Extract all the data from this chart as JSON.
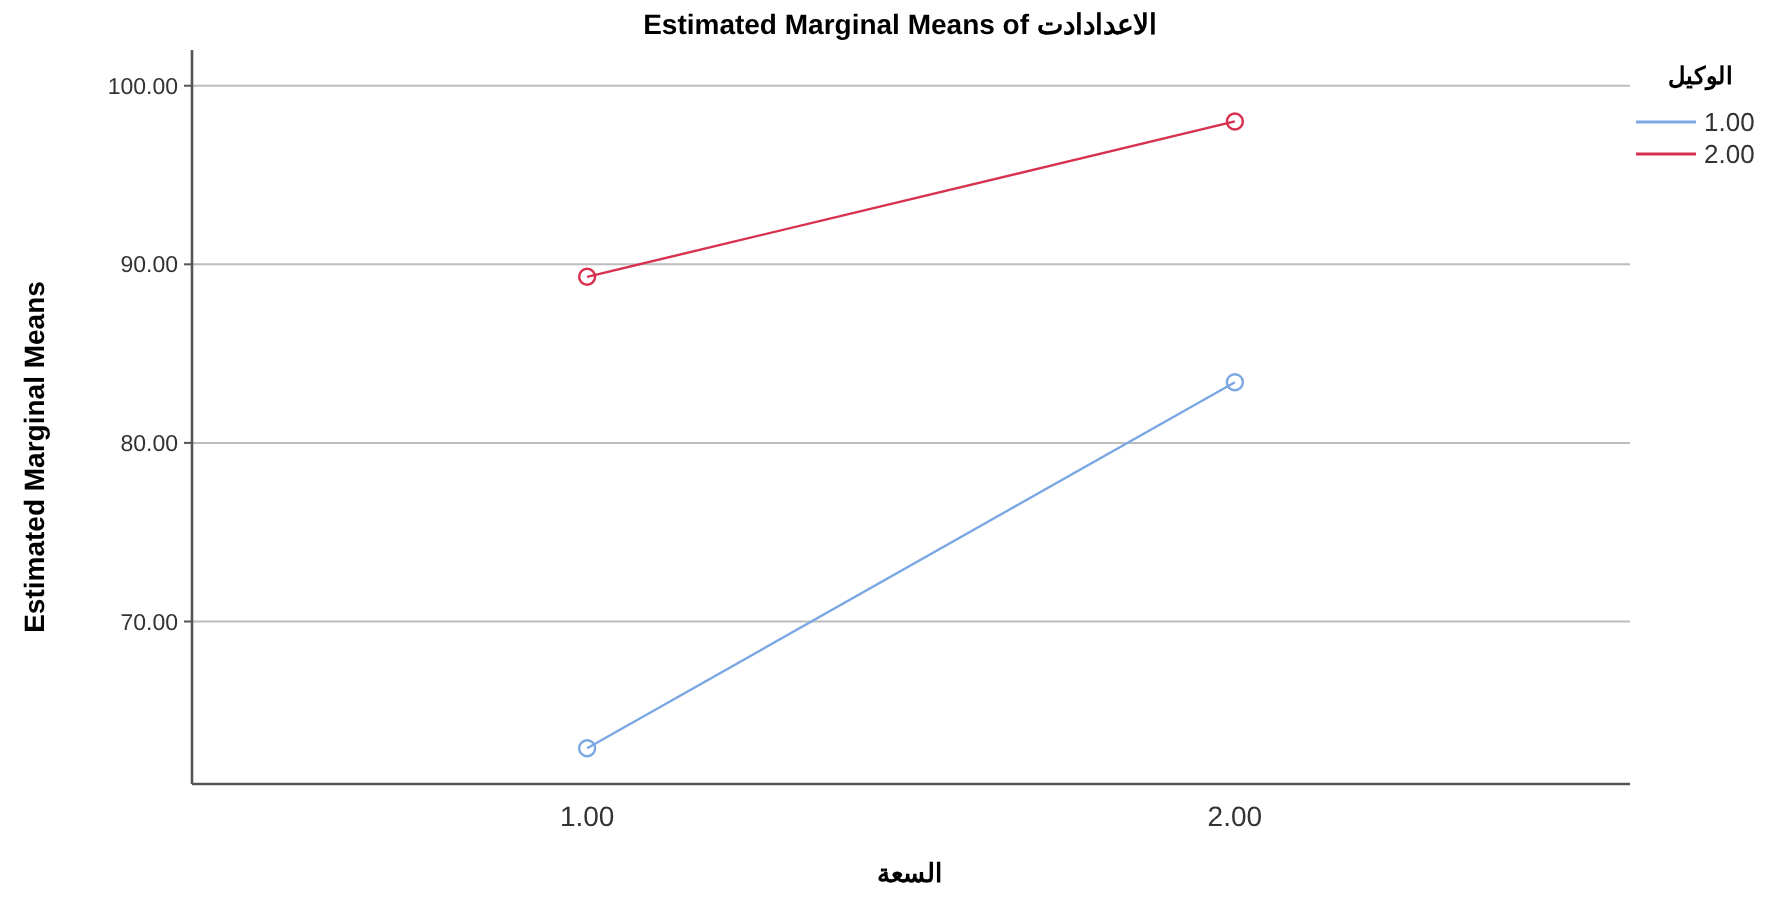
{
  "chart_data": {
    "type": "line",
    "title": "Estimated Marginal Means of الاعدادادت",
    "xlabel": "السعة",
    "ylabel": "Estimated Marginal Means",
    "legend_title": "الوكيل",
    "categories": [
      "1.00",
      "2.00"
    ],
    "series": [
      {
        "name": "1.00",
        "color": "#7ba7e3",
        "values": [
          62.9,
          83.4
        ]
      },
      {
        "name": "2.00",
        "color": "#d8304f",
        "values": [
          89.3,
          98.0
        ]
      }
    ],
    "ylim": [
      60.9,
      102
    ],
    "yticks": [
      {
        "value": 70,
        "label": "70.00"
      },
      {
        "value": 80,
        "label": "80.00"
      },
      {
        "value": 90,
        "label": "90.00"
      },
      {
        "value": 100,
        "label": "100.00"
      }
    ],
    "grid": "y",
    "legend": "top right",
    "marker": "circle"
  }
}
